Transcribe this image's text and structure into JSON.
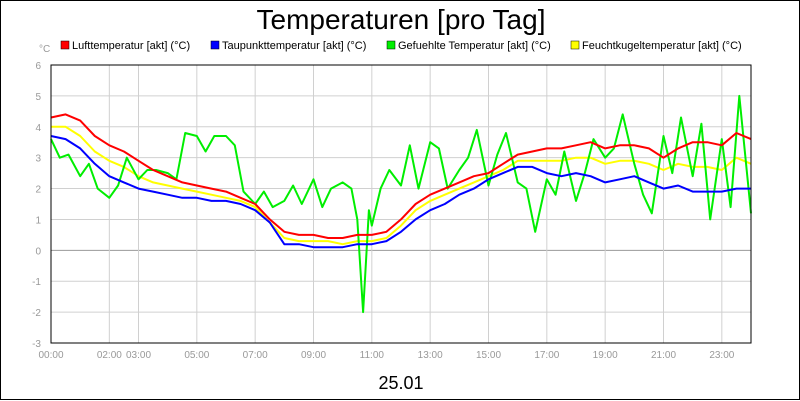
{
  "chart_data": {
    "type": "line",
    "title": "Temperaturen [pro Tag]",
    "ylabel": "°C",
    "xlabel": "25.01",
    "ylim": [
      -3,
      6
    ],
    "xlim": [
      0,
      24
    ],
    "grid": true,
    "legend_position": "top",
    "yticks": [
      "-3",
      "-2",
      "-1",
      "0",
      "1",
      "2",
      "3",
      "4",
      "5",
      "6"
    ],
    "xticks": [
      {
        "x": 0,
        "label": "00:00"
      },
      {
        "x": 2,
        "label": "02:00"
      },
      {
        "x": 3,
        "label": "03:00"
      },
      {
        "x": 5,
        "label": "05:00"
      },
      {
        "x": 7,
        "label": "07:00"
      },
      {
        "x": 9,
        "label": "09:00"
      },
      {
        "x": 11,
        "label": "11:00"
      },
      {
        "x": 13,
        "label": "13:00"
      },
      {
        "x": 15,
        "label": "15:00"
      },
      {
        "x": 17,
        "label": "17:00"
      },
      {
        "x": 19,
        "label": "19:00"
      },
      {
        "x": 21,
        "label": "21:00"
      },
      {
        "x": 23,
        "label": "23:00"
      }
    ],
    "series": [
      {
        "name": "Lufttemperatur [akt] (°C)",
        "color": "#ff0000",
        "x": [
          0,
          0.5,
          1,
          1.5,
          2,
          2.5,
          3,
          3.5,
          4,
          4.5,
          5,
          5.5,
          6,
          6.5,
          7,
          7.5,
          8,
          8.5,
          9,
          9.5,
          10,
          10.5,
          11,
          11.5,
          12,
          12.5,
          13,
          13.5,
          14,
          14.5,
          15,
          15.5,
          16,
          16.5,
          17,
          17.5,
          18,
          18.5,
          19,
          19.5,
          20,
          20.5,
          21,
          21.5,
          22,
          22.5,
          23,
          23.5,
          24
        ],
        "values": [
          4.3,
          4.4,
          4.2,
          3.7,
          3.4,
          3.2,
          2.9,
          2.6,
          2.4,
          2.2,
          2.1,
          2.0,
          1.9,
          1.7,
          1.5,
          1.0,
          0.6,
          0.5,
          0.5,
          0.4,
          0.4,
          0.5,
          0.5,
          0.6,
          1.0,
          1.5,
          1.8,
          2.0,
          2.2,
          2.4,
          2.5,
          2.8,
          3.1,
          3.2,
          3.3,
          3.3,
          3.4,
          3.5,
          3.3,
          3.4,
          3.4,
          3.3,
          3.0,
          3.3,
          3.5,
          3.5,
          3.4,
          3.8,
          3.6
        ]
      },
      {
        "name": "Taupunkttemperatur [akt] (°C)",
        "color": "#0000ff",
        "x": [
          0,
          0.5,
          1,
          1.5,
          2,
          2.5,
          3,
          3.5,
          4,
          4.5,
          5,
          5.5,
          6,
          6.5,
          7,
          7.5,
          8,
          8.5,
          9,
          9.5,
          10,
          10.5,
          11,
          11.5,
          12,
          12.5,
          13,
          13.5,
          14,
          14.5,
          15,
          15.5,
          16,
          16.5,
          17,
          17.5,
          18,
          18.5,
          19,
          19.5,
          20,
          20.5,
          21,
          21.5,
          22,
          22.5,
          23,
          23.5,
          24
        ],
        "values": [
          3.7,
          3.6,
          3.3,
          2.8,
          2.4,
          2.2,
          2.0,
          1.9,
          1.8,
          1.7,
          1.7,
          1.6,
          1.6,
          1.5,
          1.3,
          0.9,
          0.2,
          0.2,
          0.1,
          0.1,
          0.1,
          0.2,
          0.2,
          0.3,
          0.6,
          1.0,
          1.3,
          1.5,
          1.8,
          2.0,
          2.3,
          2.5,
          2.7,
          2.7,
          2.5,
          2.4,
          2.5,
          2.4,
          2.2,
          2.3,
          2.4,
          2.2,
          2.0,
          2.1,
          1.9,
          1.9,
          1.9,
          2.0,
          2.0
        ]
      },
      {
        "name": "Gefuehlte Temperatur [akt] (°C)",
        "color": "#00ee00",
        "x": [
          0,
          0.3,
          0.6,
          1,
          1.3,
          1.6,
          2,
          2.3,
          2.6,
          3,
          3.3,
          3.6,
          4,
          4.3,
          4.6,
          5,
          5.3,
          5.6,
          6,
          6.3,
          6.6,
          7,
          7.3,
          7.6,
          8,
          8.3,
          8.6,
          9,
          9.3,
          9.6,
          10,
          10.3,
          10.5,
          10.7,
          10.9,
          11,
          11.3,
          11.6,
          12,
          12.3,
          12.6,
          13,
          13.3,
          13.6,
          14,
          14.3,
          14.6,
          15,
          15.3,
          15.6,
          16,
          16.3,
          16.6,
          17,
          17.3,
          17.6,
          18,
          18.3,
          18.6,
          19,
          19.3,
          19.6,
          20,
          20.3,
          20.6,
          21,
          21.3,
          21.6,
          22,
          22.3,
          22.6,
          23,
          23.3,
          23.6,
          24
        ],
        "values": [
          3.6,
          3.0,
          3.1,
          2.4,
          2.8,
          2.0,
          1.7,
          2.1,
          3.0,
          2.3,
          2.6,
          2.6,
          2.5,
          2.3,
          3.8,
          3.7,
          3.2,
          3.7,
          3.7,
          3.4,
          1.9,
          1.5,
          1.9,
          1.4,
          1.6,
          2.1,
          1.5,
          2.3,
          1.4,
          2.0,
          2.2,
          2.0,
          1.0,
          -2.0,
          1.3,
          0.8,
          2.0,
          2.6,
          2.1,
          3.4,
          2.0,
          3.5,
          3.3,
          2.0,
          2.6,
          3.0,
          3.9,
          2.1,
          3.1,
          3.8,
          2.2,
          2.0,
          0.6,
          2.3,
          1.8,
          3.2,
          1.6,
          2.5,
          3.6,
          3.0,
          3.3,
          4.4,
          2.8,
          1.8,
          1.2,
          3.7,
          2.5,
          4.3,
          2.4,
          4.1,
          1.0,
          3.6,
          1.4,
          5.0,
          1.2
        ]
      },
      {
        "name": "Feuchtkugeltemperatur [akt] (°C)",
        "color": "#ffff00",
        "x": [
          0,
          0.5,
          1,
          1.5,
          2,
          2.5,
          3,
          3.5,
          4,
          4.5,
          5,
          5.5,
          6,
          6.5,
          7,
          7.5,
          8,
          8.5,
          9,
          9.5,
          10,
          10.5,
          11,
          11.5,
          12,
          12.5,
          13,
          13.5,
          14,
          14.5,
          15,
          15.5,
          16,
          16.5,
          17,
          17.5,
          18,
          18.5,
          19,
          19.5,
          20,
          20.5,
          21,
          21.5,
          22,
          22.5,
          23,
          23.5,
          24
        ],
        "values": [
          4.0,
          4.0,
          3.7,
          3.2,
          2.9,
          2.7,
          2.4,
          2.2,
          2.1,
          2.0,
          1.9,
          1.8,
          1.7,
          1.6,
          1.4,
          0.9,
          0.4,
          0.3,
          0.3,
          0.3,
          0.2,
          0.3,
          0.3,
          0.4,
          0.8,
          1.3,
          1.6,
          1.8,
          2.0,
          2.2,
          2.4,
          2.6,
          2.9,
          2.9,
          2.9,
          2.9,
          3.0,
          3.0,
          2.8,
          2.9,
          2.9,
          2.8,
          2.6,
          2.8,
          2.7,
          2.7,
          2.6,
          3.0,
          2.8
        ]
      }
    ]
  }
}
